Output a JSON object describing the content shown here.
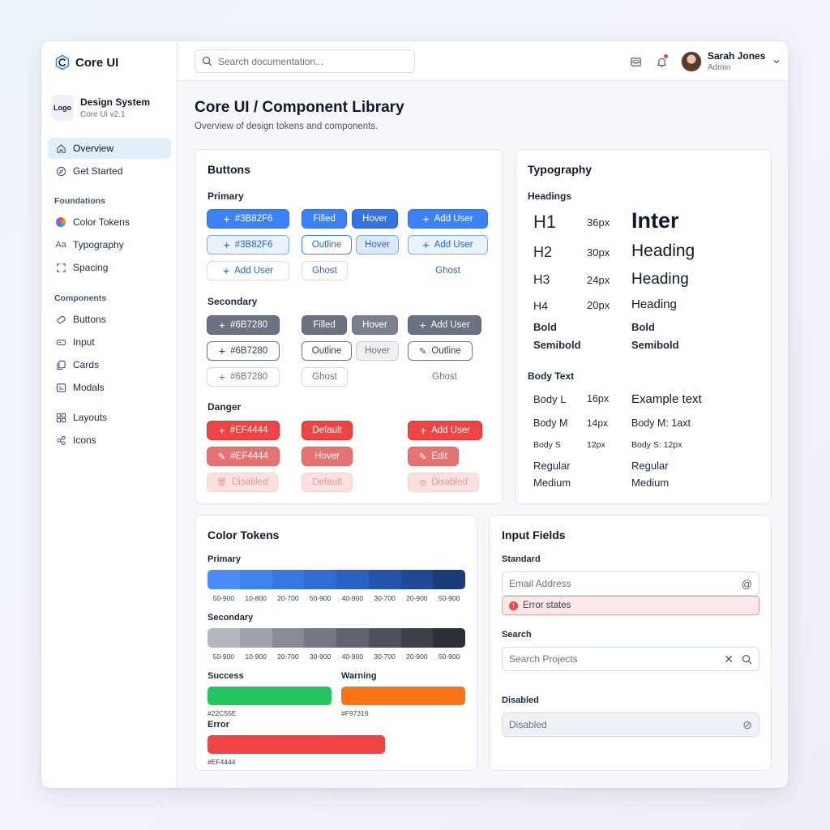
{
  "sidebar": {
    "brand": "Core UI",
    "ds_logo": "Logo",
    "ds_title": "Design System",
    "ds_version": "Core Ui v2.1",
    "nav_top": [
      {
        "label": "Overview",
        "icon": "home-icon"
      },
      {
        "label": "Get Started",
        "icon": "compass-icon"
      }
    ],
    "foundations_heading": "Foundations",
    "foundations": [
      {
        "label": "Color Tokens",
        "icon": "color-wheel-icon"
      },
      {
        "label": "Typography",
        "icon": "typography-icon"
      },
      {
        "label": "Spacing",
        "icon": "spacing-icon"
      }
    ],
    "components_heading": "Components",
    "components": [
      {
        "label": "Buttons",
        "icon": "button-icon"
      },
      {
        "label": "Input",
        "icon": "input-icon"
      },
      {
        "label": "Cards",
        "icon": "cards-icon"
      },
      {
        "label": "Modals",
        "icon": "modal-icon"
      }
    ],
    "extra": [
      {
        "label": "Layouts",
        "icon": "layout-icon"
      },
      {
        "label": "Icons",
        "icon": "icons-icon"
      }
    ]
  },
  "header": {
    "search_placeholder": "Search documentation...",
    "user_name": "Sarah Jones",
    "user_role": "Admin"
  },
  "page": {
    "title": "Core UI / Component Library",
    "subtitle": "Overview of design tokens and components."
  },
  "buttons": {
    "title": "Buttons",
    "primary_label": "Primary",
    "secondary_label": "Secondary",
    "danger_label": "Danger",
    "primary": {
      "hex": "#3B82F6",
      "filled": "Filled",
      "hover": "Hover",
      "add_user": "Add User",
      "outline": "Outline",
      "ghost": "Ghost"
    },
    "secondary": {
      "hex": "#6B7280",
      "filled": "Filled",
      "hover": "Hover",
      "add_user": "Add User",
      "outline": "Outline",
      "ghost": "Ghost"
    },
    "danger": {
      "hex": "#EF4444",
      "default": "Default",
      "add_user": "Add User",
      "hover": "Hover",
      "edit": "Edit",
      "disabled": "Disabled"
    }
  },
  "typography": {
    "title": "Typography",
    "headings_label": "Headings",
    "headings": [
      {
        "tag": "H1",
        "size": "36px",
        "sample": "Inter"
      },
      {
        "tag": "H2",
        "size": "30px",
        "sample": "Heading"
      },
      {
        "tag": "H3",
        "size": "24px",
        "sample": "Heading"
      },
      {
        "tag": "H4",
        "size": "20px",
        "sample": "Heading"
      }
    ],
    "bold": "Bold",
    "semibold": "Semibold",
    "body_label": "Body Text",
    "body": [
      {
        "tag": "Body L",
        "size": "16px",
        "sample": "Example text"
      },
      {
        "tag": "Body M",
        "size": "14px",
        "sample": "Body M: 1axt"
      },
      {
        "tag": "Body S",
        "size": "12px",
        "sample": "Body S: 12px"
      }
    ],
    "regular": "Regular",
    "medium": "Medium"
  },
  "color_tokens": {
    "title": "Color Tokens",
    "primary_label": "Primary",
    "primary_swatches": [
      "#4a8df6",
      "#3f83ee",
      "#3778e2",
      "#306dd3",
      "#2a61c2",
      "#2455ad",
      "#1f4896",
      "#1a3a78"
    ],
    "primary_scale": [
      "50-900",
      "10-800",
      "20-700",
      "50-900",
      "40-900",
      "30-700",
      "20-900",
      "50-900"
    ],
    "secondary_label": "Secondary",
    "secondary_swatches": [
      "#b3b8c0",
      "#9ca2ab",
      "#868d97",
      "#717883",
      "#5f6570",
      "#4d535d",
      "#3c414a",
      "#2c3037"
    ],
    "secondary_scale": [
      "50-900",
      "10-900",
      "20-700",
      "30-900",
      "40-900",
      "30-700",
      "20-900",
      "50-900"
    ],
    "success_label": "Success",
    "success_hex": "#22C55E",
    "warning_label": "Warning",
    "warning_hex": "#F97316",
    "error_label": "Error",
    "error_hex": "#EF4444"
  },
  "inputs": {
    "title": "Input Fields",
    "standard_label": "Standard",
    "email_placeholder": "Email Address",
    "error_text": "Error states",
    "search_label": "Search",
    "search_placeholder": "Search Projects",
    "disabled_label": "Disabled",
    "disabled_placeholder": "Disabled"
  }
}
